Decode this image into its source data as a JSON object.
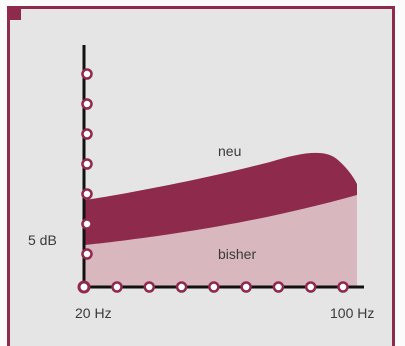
{
  "chart_data": {
    "type": "area",
    "x_range": [
      "20 Hz",
      "100 Hz"
    ],
    "tick_labels": {
      "x_start": "20 Hz",
      "x_end": "100 Hz",
      "y_mark": "5 dB"
    },
    "series": [
      {
        "name": "neu",
        "color": "#8e2a4b"
      },
      {
        "name": "bisher",
        "color": "#d9b7be"
      }
    ],
    "x_ticks": 9,
    "y_ticks": 7,
    "grid": false,
    "marker_color": "#8e2a4b"
  }
}
